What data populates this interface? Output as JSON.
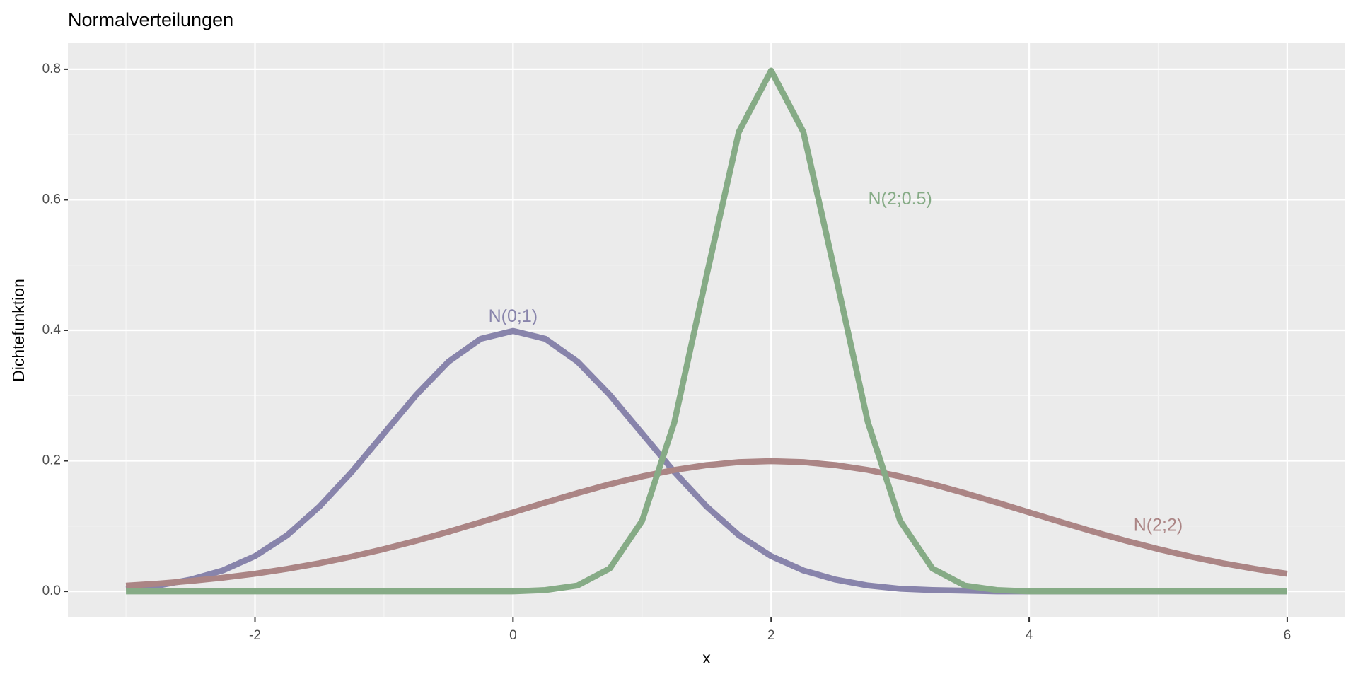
{
  "chart_data": {
    "type": "line",
    "title": "Normalverteilungen",
    "x_label": "x",
    "y_label": "Dichtefunktion",
    "x": [
      -3,
      -2.75,
      -2.5,
      -2.25,
      -2,
      -1.75,
      -1.5,
      -1.25,
      -1,
      -0.75,
      -0.5,
      -0.25,
      0,
      0.25,
      0.5,
      0.75,
      1,
      1.25,
      1.5,
      1.75,
      2,
      2.25,
      2.5,
      2.75,
      3,
      3.25,
      3.5,
      3.75,
      4,
      4.25,
      4.5,
      4.75,
      5,
      5.25,
      5.5,
      5.75,
      6
    ],
    "series": [
      {
        "name": "N(0;1)",
        "color": "#8884ab",
        "label_x": 0,
        "label_y": 0.42,
        "values": [
          0.004,
          0.009,
          0.018,
          0.032,
          0.054,
          0.086,
          0.13,
          0.183,
          0.242,
          0.301,
          0.352,
          0.387,
          0.399,
          0.387,
          0.352,
          0.301,
          0.242,
          0.183,
          0.13,
          0.086,
          0.054,
          0.032,
          0.018,
          0.009,
          0.004,
          0.002,
          0.001,
          0,
          0,
          0,
          0,
          0,
          0,
          0,
          0,
          0,
          0
        ]
      },
      {
        "name": "N(2;2)",
        "color": "#ab8585",
        "label_x": 5,
        "label_y": 0.1,
        "values": [
          0.0088,
          0.0119,
          0.0159,
          0.0209,
          0.027,
          0.0344,
          0.0431,
          0.0533,
          0.0648,
          0.0775,
          0.0913,
          0.106,
          0.121,
          0.1361,
          0.1506,
          0.1642,
          0.1761,
          0.186,
          0.1934,
          0.198,
          0.1995,
          0.198,
          0.1934,
          0.186,
          0.1761,
          0.1642,
          0.1506,
          0.1361,
          0.121,
          0.106,
          0.0913,
          0.0775,
          0.0648,
          0.0533,
          0.0431,
          0.0344,
          0.027
        ]
      },
      {
        "name": "N(2;0.5)",
        "color": "#86ab86",
        "label_x": 3,
        "label_y": 0.6,
        "values": [
          0,
          0,
          0,
          0,
          0,
          0,
          0,
          0,
          0,
          0,
          0,
          0,
          0,
          0.002,
          0.009,
          0.035,
          0.108,
          0.259,
          0.484,
          0.704,
          0.798,
          0.704,
          0.484,
          0.259,
          0.108,
          0.035,
          0.009,
          0.002,
          0,
          0,
          0,
          0,
          0,
          0,
          0,
          0,
          0
        ]
      }
    ],
    "xlim": [
      -3.45,
      6.45
    ],
    "ylim": [
      -0.04,
      0.84
    ],
    "xticks": [
      -2,
      0,
      2,
      4,
      6
    ],
    "yticks": [
      {
        "value": 0,
        "label": "0.0"
      },
      0.2,
      0.4,
      0.6,
      0.8
    ],
    "grid": true,
    "legend": false
  }
}
